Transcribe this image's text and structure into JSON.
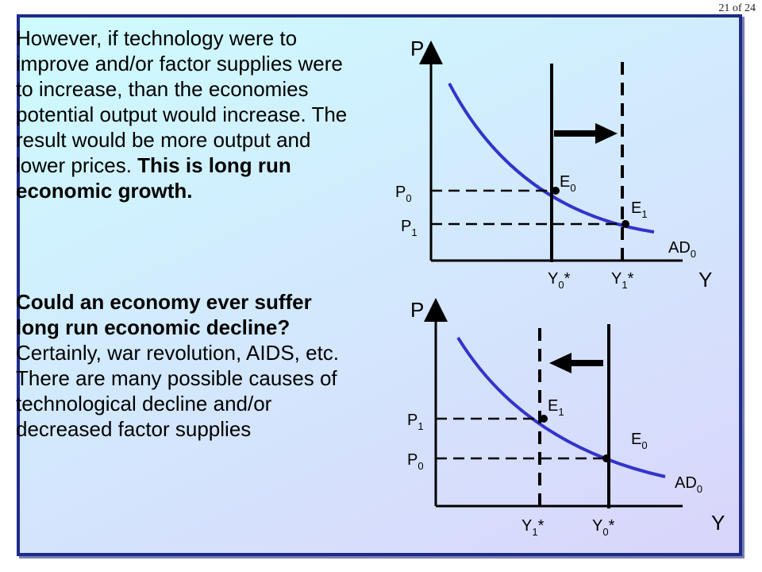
{
  "page_number": "21 of 24",
  "paragraph1": {
    "text": "However, if technology were to improve and/or factor supplies were to increase, than the economies potential output would increase.   The result would be more output and lower prices.",
    "bold": "This is long run economic growth."
  },
  "paragraph2": {
    "bold": "Could an economy ever suffer long run economic decline?",
    "text": "Certainly, war revolution, AIDS, etc.  There are many possible causes of technological decline and/or decreased factor supplies"
  },
  "diagram1": {
    "y_axis": "P",
    "x_axis": "Y",
    "p0": {
      "base": "P",
      "sub": "0"
    },
    "p1": {
      "base": "P",
      "sub": "1"
    },
    "e0": {
      "base": "E",
      "sub": "0"
    },
    "e1": {
      "base": "E",
      "sub": "1"
    },
    "ad": {
      "base": "AD",
      "sub": "0"
    },
    "y0": {
      "base": "Y",
      "sub": "0",
      "suffix": "*"
    },
    "y1": {
      "base": "Y",
      "sub": "1",
      "suffix": "*"
    }
  },
  "diagram2": {
    "y_axis": "P",
    "x_axis": "Y",
    "p0": {
      "base": "P",
      "sub": "0"
    },
    "p1": {
      "base": "P",
      "sub": "1"
    },
    "e0": {
      "base": "E",
      "sub": "0"
    },
    "e1": {
      "base": "E",
      "sub": "1"
    },
    "ad": {
      "base": "AD",
      "sub": "0"
    },
    "y0": {
      "base": "Y",
      "sub": "0",
      "suffix": "*"
    },
    "y1": {
      "base": "Y",
      "sub": "1",
      "suffix": "*"
    }
  },
  "colors": {
    "curve": "#3333cc",
    "border": "#1e2a8a"
  }
}
